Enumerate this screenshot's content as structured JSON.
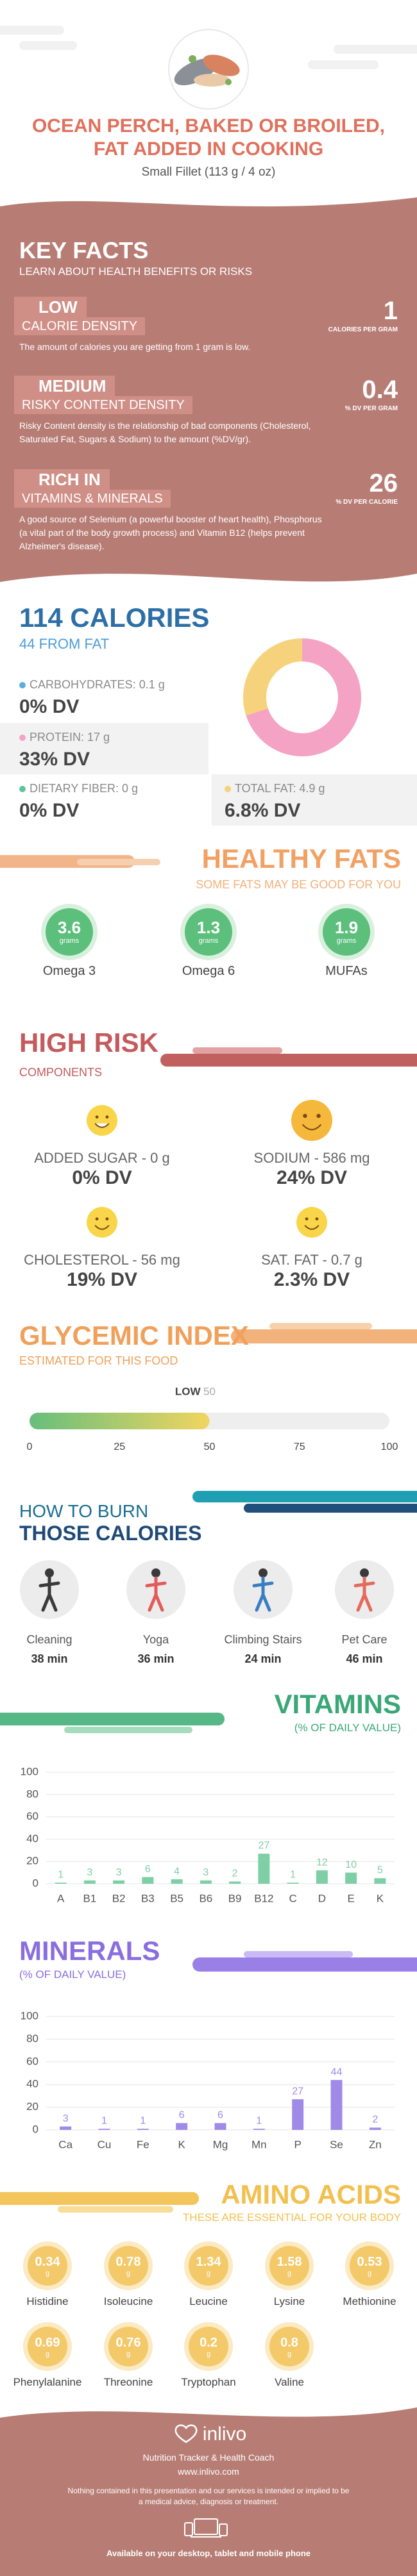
{
  "header": {
    "title_lines": [
      "OCEAN PERCH, BAKED OR BROILED,",
      "FAT ADDED IN COOKING"
    ],
    "subtitle": "Small Fillet (113 g / 4 oz)"
  },
  "key_facts": {
    "title": "KEY FACTS",
    "subtitle": "LEARN ABOUT HEALTH BENEFITS OR RISKS",
    "items": [
      {
        "level": "LOW",
        "label": "CALORIE DENSITY",
        "value": 1,
        "unit": "CALORIES PER GRAM",
        "text": "The amount of calories you are getting from 1 gram is low."
      },
      {
        "level": "MEDIUM",
        "label": "RISKY CONTENT DENSITY",
        "value": 0.4,
        "unit": "% DV PER GRAM",
        "text": "Risky Content density is the relationship of bad components (Cholesterol, Saturated Fat, Sugars & Sodium) to the amount (%DV/gr)."
      },
      {
        "level": "RICH IN",
        "label": "VITAMINS & MINERALS",
        "value": 26,
        "unit": "% DV PER CALORIE",
        "text": "A good source of Selenium (a powerful booster of heart health), Phosphorus (a vital part of the body growth process) and Vitamin B12 (helps prevent Alzheimer's disease)."
      }
    ]
  },
  "calories": {
    "title": "114 CALORIES",
    "subtitle": "44 FROM FAT",
    "nutrients": [
      {
        "label": "CARBOHYDRATES: 0.1 g",
        "dv": "0% DV",
        "color": "#5aaedc"
      },
      {
        "label": "PROTEIN: 17 g",
        "dv": "33% DV",
        "color": "#f4a3c4",
        "pie_share": 70
      },
      {
        "label": "DIETARY FIBER: 0 g",
        "dv": "0% DV",
        "color": "#5ec49a"
      },
      {
        "label": "TOTAL FAT: 4.9 g",
        "dv": "6.8% DV",
        "color": "#f6d27c",
        "pie_share": 30
      }
    ]
  },
  "healthy_fats": {
    "title": "HEALTHY FATS",
    "subtitle": "SOME FATS MAY BE GOOD FOR YOU",
    "unit": "grams",
    "items": [
      {
        "name": "Omega 3",
        "value": 3.6
      },
      {
        "name": "Omega 6",
        "value": 1.3
      },
      {
        "name": "MUFAs",
        "value": 1.9
      }
    ]
  },
  "high_risk": {
    "title": "HIGH RISK",
    "subtitle": "COMPONENTS",
    "items": [
      {
        "label": "ADDED SUGAR - 0 g",
        "dv": "0% DV"
      },
      {
        "label": "SODIUM - 586 mg",
        "dv": "24% DV"
      },
      {
        "label": "CHOLESTEROL - 56 mg",
        "dv": "19% DV"
      },
      {
        "label": "SAT. FAT - 0.7 g",
        "dv": "2.3% DV"
      }
    ]
  },
  "chart_data": [
    {
      "type": "gauge",
      "title": "GLYCEMIC INDEX",
      "subtitle": "ESTIMATED FOR THIS FOOD",
      "label": "LOW",
      "value": 50,
      "xlim": [
        0,
        100
      ],
      "xticks": [
        0,
        25,
        50,
        75,
        100
      ]
    },
    {
      "type": "bar",
      "title": "VITAMINS",
      "subtitle": "(% OF DAILY VALUE)",
      "categories": [
        "A",
        "B1",
        "B2",
        "B3",
        "B5",
        "B6",
        "B9",
        "B12",
        "C",
        "D",
        "E",
        "K"
      ],
      "values": [
        1,
        3,
        3,
        6,
        4,
        3,
        2,
        27,
        1,
        12,
        10,
        5
      ],
      "color": "#7fcfa6",
      "ylim": [
        0,
        100
      ],
      "yticks": [
        0,
        20,
        40,
        60,
        80,
        100
      ],
      "grid": true
    },
    {
      "type": "bar",
      "title": "MINERALS",
      "subtitle": "(% OF DAILY VALUE)",
      "categories": [
        "Ca",
        "Cu",
        "Fe",
        "K",
        "Mg",
        "Mn",
        "P",
        "Se",
        "Zn"
      ],
      "values": [
        3,
        1,
        1,
        6,
        6,
        1,
        27,
        44,
        2
      ],
      "color": "#9f8ae8",
      "ylim": [
        0,
        100
      ],
      "yticks": [
        0,
        20,
        40,
        60,
        80,
        100
      ],
      "grid": true
    }
  ],
  "burn": {
    "title_lines": [
      "HOW TO BURN",
      "THOSE CALORIES"
    ],
    "activities": [
      {
        "name": "Cleaning",
        "duration": "38 min"
      },
      {
        "name": "Yoga",
        "duration": "36 min"
      },
      {
        "name": "Climbing Stairs",
        "duration": "24 min"
      },
      {
        "name": "Pet Care",
        "duration": "46 min"
      }
    ]
  },
  "amino_acids": {
    "title": "AMINO ACIDS",
    "subtitle": "THESE ARE ESSENTIAL FOR YOUR BODY",
    "unit": "g",
    "items": [
      {
        "name": "Histidine",
        "value": 0.34
      },
      {
        "name": "Isoleucine",
        "value": 0.78
      },
      {
        "name": "Leucine",
        "value": 1.34
      },
      {
        "name": "Lysine",
        "value": 1.58
      },
      {
        "name": "Methionine",
        "value": 0.53
      },
      {
        "name": "Phenylalanine",
        "value": 0.69
      },
      {
        "name": "Threonine",
        "value": 0.76
      },
      {
        "name": "Tryptophan",
        "value": 0.2
      },
      {
        "name": "Valine",
        "value": 0.8
      }
    ]
  },
  "footer": {
    "brand": "inlivo",
    "tagline": "Nutrition Tracker & Health Coach",
    "url": "www.inlivo.com",
    "disclaimer": "Nothing contained in this presentation and our services is intended or implied to be a medical advice, diagnosis or treatment.",
    "availability": "Available on your desktop, tablet and mobile phone"
  }
}
